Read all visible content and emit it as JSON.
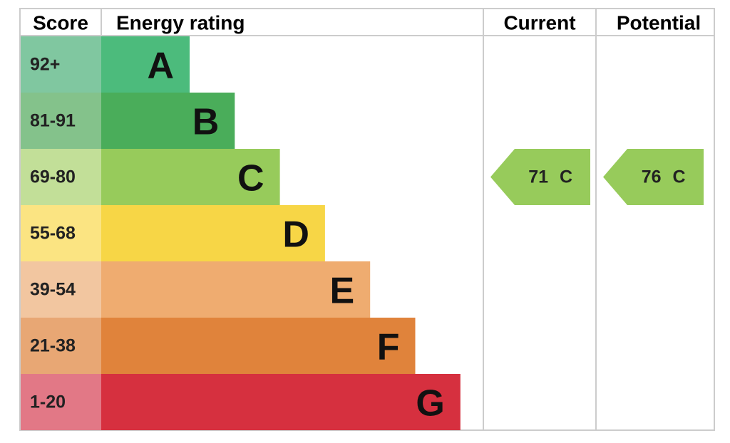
{
  "header": {
    "score": "Score",
    "rating": "Energy rating",
    "current": "Current",
    "potential": "Potential"
  },
  "rows": [
    {
      "score": "92+",
      "band": "A"
    },
    {
      "score": "81-91",
      "band": "B"
    },
    {
      "score": "69-80",
      "band": "C"
    },
    {
      "score": "55-68",
      "band": "D"
    },
    {
      "score": "39-54",
      "band": "E"
    },
    {
      "score": "21-38",
      "band": "F"
    },
    {
      "score": "1-20",
      "band": "G"
    }
  ],
  "current": {
    "value": 71,
    "band": "C"
  },
  "potential": {
    "value": 76,
    "band": "C"
  }
}
